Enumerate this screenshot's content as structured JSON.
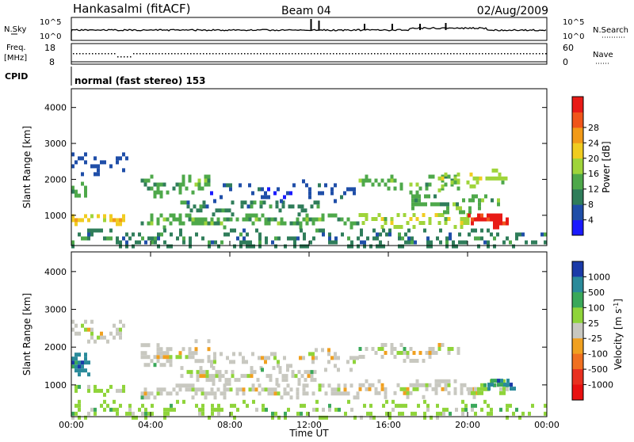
{
  "header": {
    "site": "Hankasalmi (fitACF)",
    "beam": "Beam 04",
    "date": "02/Aug/2009"
  },
  "status_panels": {
    "nsky_label": "N.Sky",
    "nsearch_label": "N.Search",
    "freq_label_1": "Freq.",
    "freq_label_2": "[MHz]",
    "nave_label": "Nave",
    "cpid_label": "CPID",
    "cpid_text": "normal (fast stereo) 153",
    "noise_left_ticks": [
      "10^5",
      "10^0"
    ],
    "noise_right_ticks": [
      "10^5",
      "10^0"
    ],
    "freq_left_ticks": [
      "18",
      "8"
    ],
    "freq_right_ticks": [
      "60",
      "0"
    ]
  },
  "chart_data": [
    {
      "type": "heatmap",
      "name": "power",
      "ylabel": "Slant Range [km]",
      "ylim": [
        180,
        4500
      ],
      "y_ticks": [
        "1000",
        "2000",
        "3000",
        "4000"
      ],
      "y_tick_values": [
        1000,
        2000,
        3000,
        4000
      ],
      "colorbar_label": "Power [dB]",
      "colorbar_ticks": [
        "4",
        "8",
        "12",
        "16",
        "20",
        "24",
        "28"
      ],
      "colorbar_colors": [
        "#1a1aff",
        "#1f4ea8",
        "#2f7d5a",
        "#4ea84a",
        "#9fd43a",
        "#f0cc20",
        "#f29a18",
        "#f0551a",
        "#e81a16"
      ],
      "bands": [
        {
          "t_start": 0.0,
          "t_end": 2.7,
          "r_center": 950,
          "r_width": 140,
          "level": 5,
          "density": 0.8
        },
        {
          "t_start": 0.0,
          "t_end": 0.8,
          "r_center": 1650,
          "r_width": 380,
          "level": 3,
          "density": 0.7
        },
        {
          "t_start": 0.0,
          "t_end": 3.0,
          "r_center": 2500,
          "r_width": 300,
          "level": 1,
          "density": 0.45
        },
        {
          "t_start": 3.5,
          "t_end": 7.0,
          "r_center": 1900,
          "r_width": 320,
          "level": 3,
          "density": 0.6
        },
        {
          "t_start": 5.5,
          "t_end": 12.5,
          "r_center": 1300,
          "r_width": 220,
          "level": 2,
          "density": 0.5
        },
        {
          "t_start": 3.5,
          "t_end": 14.5,
          "r_center": 900,
          "r_width": 180,
          "level": 3,
          "density": 0.65
        },
        {
          "t_start": 7.0,
          "t_end": 14.5,
          "r_center": 1750,
          "r_width": 300,
          "level": 1,
          "density": 0.35
        },
        {
          "t_start": 14.5,
          "t_end": 19.5,
          "r_center": 1950,
          "r_width": 260,
          "level": 3,
          "density": 0.55
        },
        {
          "t_start": 14.5,
          "t_end": 20.5,
          "r_center": 950,
          "r_width": 220,
          "level": 4,
          "density": 0.65
        },
        {
          "t_start": 17.0,
          "t_end": 21.5,
          "r_center": 1400,
          "r_width": 260,
          "level": 3,
          "density": 0.55
        },
        {
          "t_start": 18.5,
          "t_end": 22.0,
          "r_center": 2050,
          "r_width": 300,
          "level": 4,
          "density": 0.55
        },
        {
          "t_start": 20.0,
          "t_end": 22.2,
          "r_center": 920,
          "r_width": 200,
          "level": 8,
          "density": 0.85
        },
        {
          "t_start": 0.0,
          "t_end": 24.0,
          "r_center": 400,
          "r_width": 320,
          "level": 2,
          "density": 0.4
        }
      ]
    },
    {
      "type": "heatmap",
      "name": "velocity",
      "ylabel": "Slant Range [km]",
      "xlabel": "Time UT",
      "xlim": [
        0,
        24
      ],
      "x_ticks": [
        "00:00",
        "04:00",
        "08:00",
        "12:00",
        "16:00",
        "20:00",
        "00:00"
      ],
      "ylim": [
        180,
        4500
      ],
      "y_ticks": [
        "1000",
        "2000",
        "3000",
        "4000"
      ],
      "y_tick_values": [
        1000,
        2000,
        3000,
        4000
      ],
      "colorbar_label": "Velocity [m s^-1]",
      "colorbar_ticks": [
        "1000",
        "500",
        "100",
        "25",
        "-25",
        "-100",
        "-500",
        "-1000"
      ],
      "colorbar_colors": [
        "#1a3aa8",
        "#2a8a9a",
        "#3aa85a",
        "#8fd43a",
        "#c8c8c0",
        "#f0a020",
        "#f07020",
        "#e83020",
        "#e81010"
      ],
      "bands": [
        {
          "t_start": 0.0,
          "t_end": 0.9,
          "r_center": 1500,
          "r_width": 380,
          "level": 1,
          "density": 0.8
        },
        {
          "t_start": 0.0,
          "t_end": 2.7,
          "r_center": 930,
          "r_width": 140,
          "level": 3,
          "density": 0.7
        },
        {
          "t_start": 0.0,
          "t_end": 3.0,
          "r_center": 2500,
          "r_width": 300,
          "level": 4,
          "density": 0.4
        },
        {
          "t_start": 3.5,
          "t_end": 7.0,
          "r_center": 1900,
          "r_width": 320,
          "level": 4,
          "density": 0.6
        },
        {
          "t_start": 5.5,
          "t_end": 12.5,
          "r_center": 1300,
          "r_width": 220,
          "level": 4,
          "density": 0.5
        },
        {
          "t_start": 3.5,
          "t_end": 14.5,
          "r_center": 900,
          "r_width": 180,
          "level": 4,
          "density": 0.65
        },
        {
          "t_start": 7.0,
          "t_end": 14.5,
          "r_center": 1750,
          "r_width": 300,
          "level": 4,
          "density": 0.35
        },
        {
          "t_start": 14.5,
          "t_end": 19.5,
          "r_center": 1950,
          "r_width": 260,
          "level": 4,
          "density": 0.55
        },
        {
          "t_start": 14.5,
          "t_end": 20.5,
          "r_center": 950,
          "r_width": 220,
          "level": 4,
          "density": 0.6
        },
        {
          "t_start": 20.0,
          "t_end": 22.0,
          "r_center": 950,
          "r_width": 220,
          "level": 3,
          "density": 0.8
        },
        {
          "t_start": 21.0,
          "t_end": 22.3,
          "r_center": 1050,
          "r_width": 200,
          "level": 1,
          "density": 0.7
        },
        {
          "t_start": 0.0,
          "t_end": 24.0,
          "r_center": 380,
          "r_width": 300,
          "level": 3,
          "density": 0.35
        }
      ]
    }
  ]
}
